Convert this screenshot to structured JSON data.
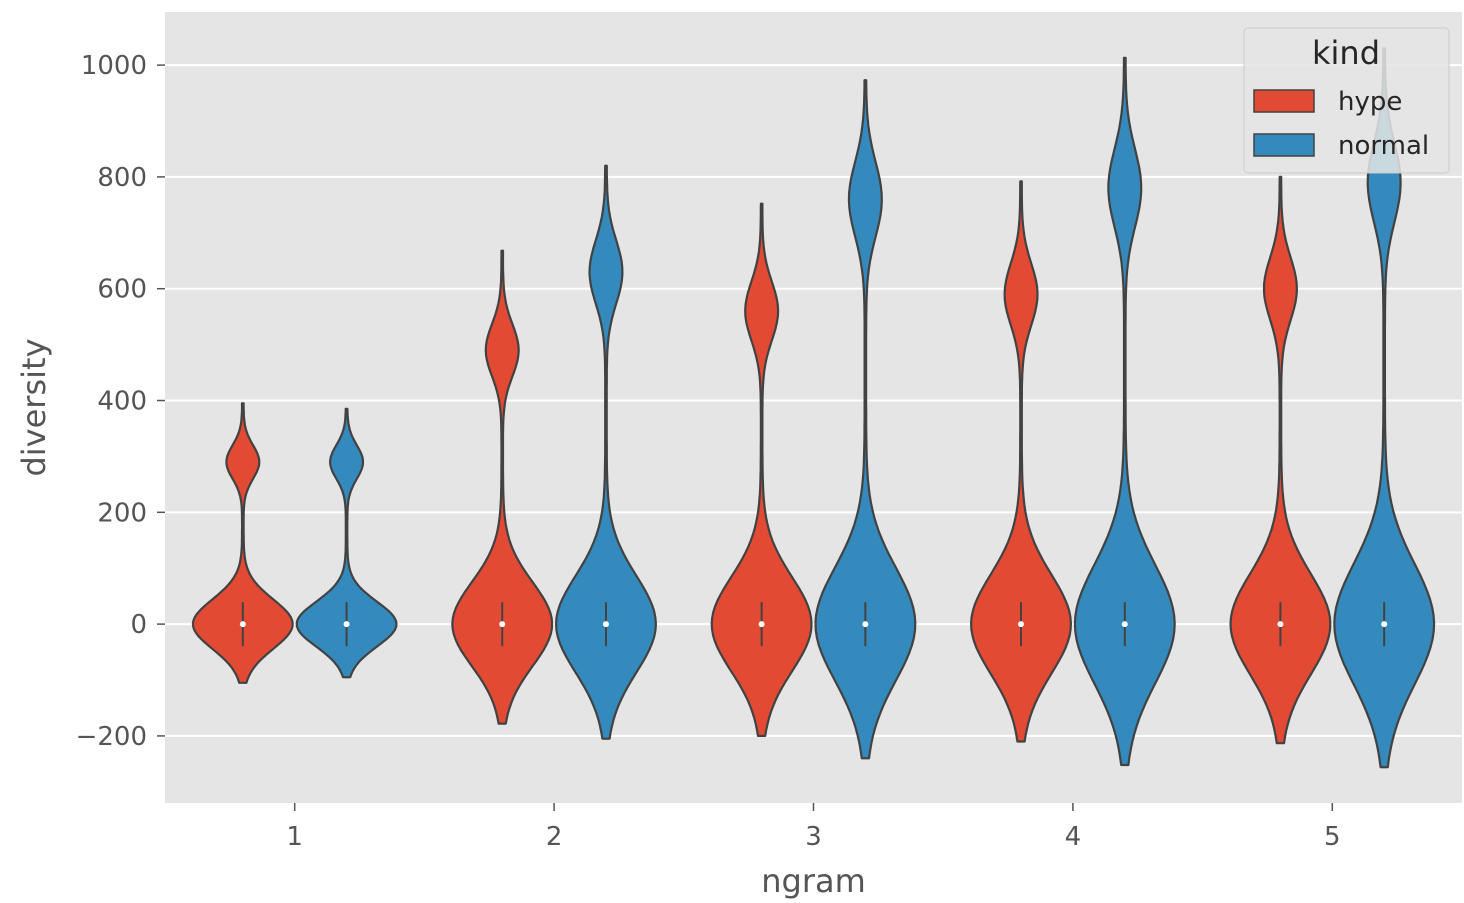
{
  "chart_data": {
    "type": "violin",
    "xlabel": "ngram",
    "ylabel": "diversity",
    "categories": [
      "1",
      "2",
      "3",
      "4",
      "5"
    ],
    "ylim": [
      -320,
      1095
    ],
    "yticks": [
      -200,
      0,
      200,
      400,
      600,
      800,
      1000
    ],
    "ytick_labels": [
      "−200",
      "0",
      "200",
      "400",
      "600",
      "800",
      "1000"
    ],
    "grid": true,
    "legend": {
      "title": "kind",
      "placement": "top-right",
      "entries": [
        "hype",
        "normal"
      ]
    },
    "series": [
      {
        "name": "hype",
        "color": "#E24A33",
        "violins": [
          {
            "category": "1",
            "min": -105,
            "max": 395,
            "median": 0,
            "lower_mode": 0,
            "upper_mode": 290
          },
          {
            "category": "2",
            "min": -178,
            "max": 668,
            "median": 0,
            "lower_mode": 0,
            "upper_mode": 490
          },
          {
            "category": "3",
            "min": -200,
            "max": 752,
            "median": 0,
            "lower_mode": 0,
            "upper_mode": 560
          },
          {
            "category": "4",
            "min": -210,
            "max": 792,
            "median": 0,
            "lower_mode": 0,
            "upper_mode": 590
          },
          {
            "category": "5",
            "min": -213,
            "max": 800,
            "median": 0,
            "lower_mode": 0,
            "upper_mode": 600
          }
        ]
      },
      {
        "name": "normal",
        "color": "#348ABD",
        "violins": [
          {
            "category": "1",
            "min": -95,
            "max": 385,
            "median": 0,
            "lower_mode": 0,
            "upper_mode": 290
          },
          {
            "category": "2",
            "min": -205,
            "max": 820,
            "median": 0,
            "lower_mode": 0,
            "upper_mode": 630
          },
          {
            "category": "3",
            "min": -240,
            "max": 973,
            "median": 0,
            "lower_mode": 0,
            "upper_mode": 760
          },
          {
            "category": "4",
            "min": -252,
            "max": 1013,
            "median": 0,
            "lower_mode": 0,
            "upper_mode": 780
          },
          {
            "category": "5",
            "min": -256,
            "max": 1030,
            "median": 0,
            "lower_mode": 0,
            "upper_mode": 790
          }
        ]
      }
    ]
  },
  "colors": {
    "plot_background": "#E5E5E5",
    "grid": "#FFFFFF",
    "outline": "#424242",
    "median_dot": "#FFFFFF"
  }
}
